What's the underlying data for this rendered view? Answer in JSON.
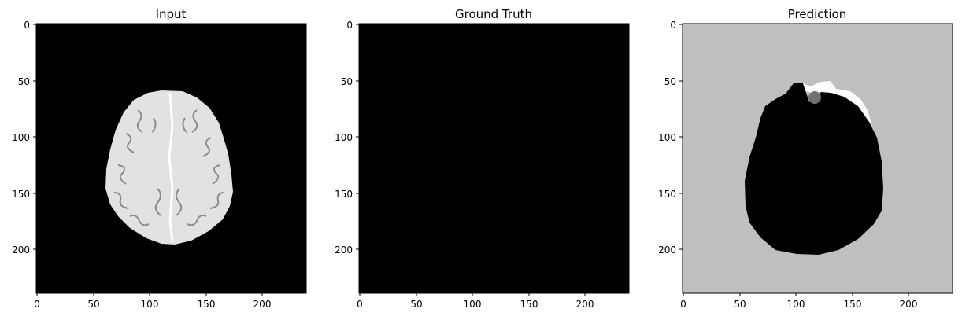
{
  "chart_data": [
    {
      "type": "heatmap",
      "title": "Input",
      "xlabel": "",
      "ylabel": "",
      "xlim": [
        -0.5,
        239.5
      ],
      "ylim": [
        239.5,
        -0.5
      ],
      "xticks": [
        0,
        50,
        100,
        150,
        200
      ],
      "yticks": [
        0,
        50,
        100,
        150,
        200
      ],
      "grid": false,
      "description_shape": "brain",
      "colors": {
        "background": "#000000",
        "fill": "#e2e2e2",
        "sulci": "#8a8a8a",
        "midline": "#ffffff"
      }
    },
    {
      "type": "heatmap",
      "title": "Ground Truth",
      "xlabel": "",
      "ylabel": "",
      "xlim": [
        -0.5,
        239.5
      ],
      "ylim": [
        239.5,
        -0.5
      ],
      "xticks": [
        0,
        50,
        100,
        150,
        200
      ],
      "yticks": [
        0,
        50,
        100,
        150,
        200
      ],
      "grid": false,
      "colors": {
        "background": "#000000"
      }
    },
    {
      "type": "heatmap",
      "title": "Prediction",
      "xlabel": "",
      "ylabel": "",
      "xlim": [
        -0.5,
        239.5
      ],
      "ylim": [
        239.5,
        -0.5
      ],
      "xticks": [
        0,
        50,
        100,
        150,
        200
      ],
      "yticks": [
        0,
        50,
        100,
        150,
        200
      ],
      "grid": false,
      "colors": {
        "background": "#bfbfbf",
        "interior": "#000000",
        "edge": "#ffffff",
        "blob": "#707070"
      }
    }
  ]
}
